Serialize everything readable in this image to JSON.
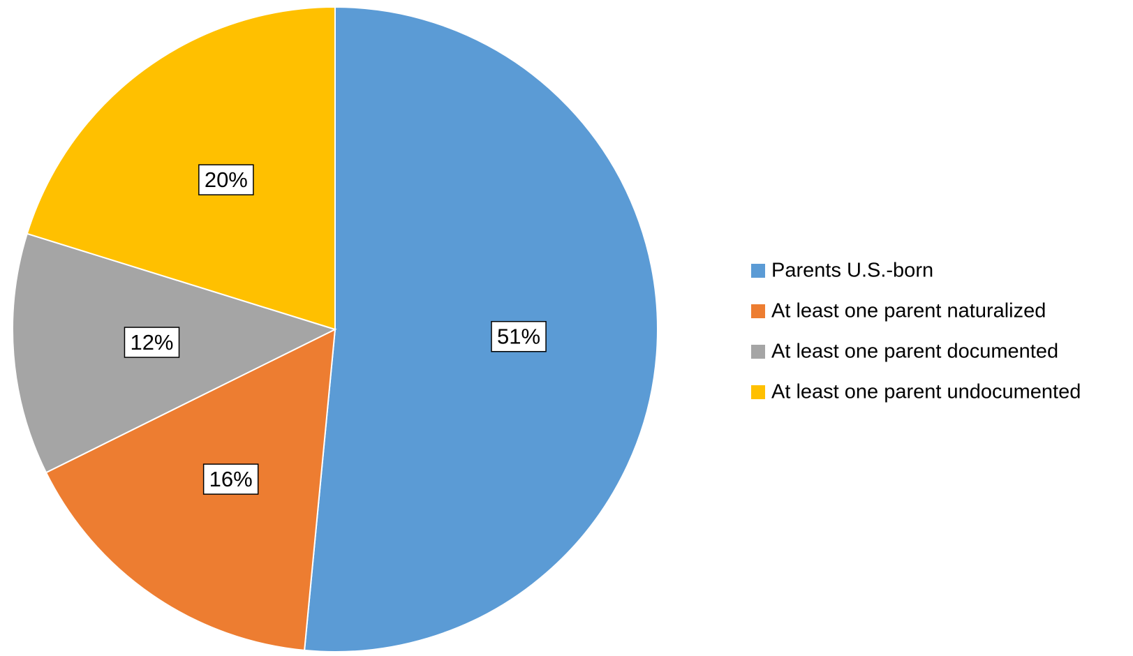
{
  "chart_data": {
    "type": "pie",
    "categories": [
      "Parents U.S.-born",
      "At least one parent naturalized",
      "At least one parent documented",
      "At least one parent undocumented"
    ],
    "values": [
      51,
      16,
      12,
      20
    ],
    "value_labels": [
      "51%",
      "16%",
      "12%",
      "20%"
    ],
    "colors": [
      "#5b9bd5",
      "#ed7d31",
      "#a5a5a5",
      "#ffc000"
    ],
    "legend": "right"
  }
}
